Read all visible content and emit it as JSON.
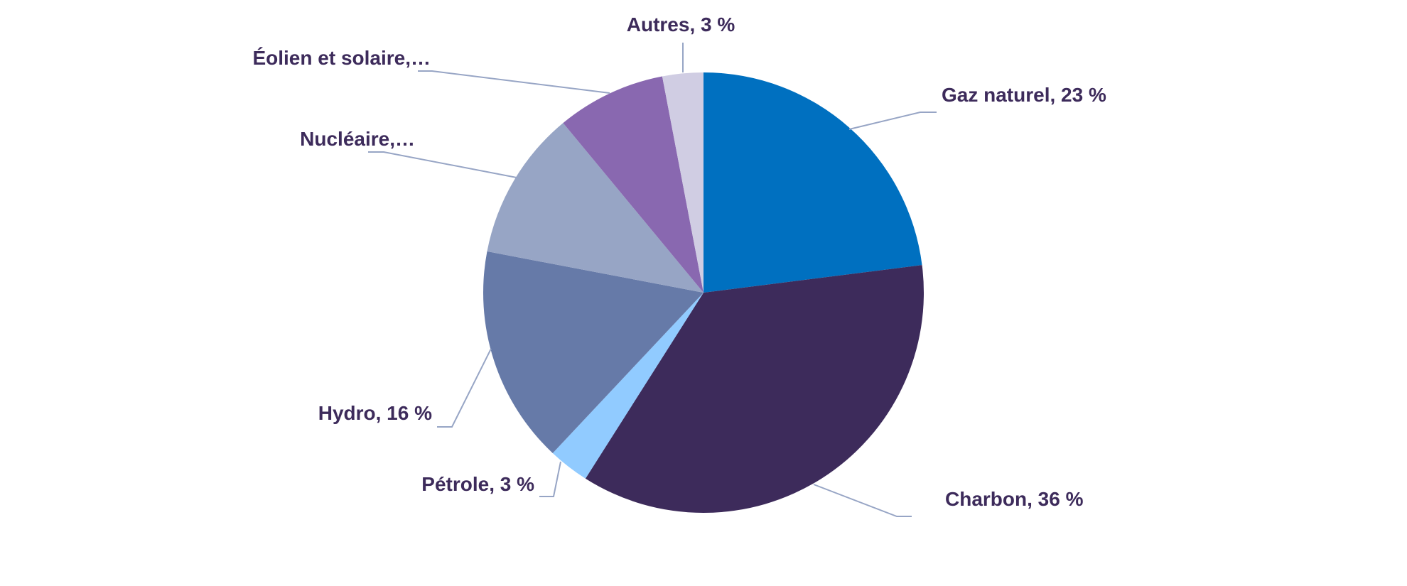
{
  "chart_data": {
    "type": "pie",
    "start_angle_deg": 0,
    "direction": "clockwise",
    "slices": [
      {
        "label": "Gaz naturel, 23 %",
        "value": 23,
        "color": "#0070c0",
        "label_side": "right"
      },
      {
        "label": "Charbon, 36 %",
        "value": 36,
        "color": "#3d2b5b",
        "label_side": "right"
      },
      {
        "label": "Pétrole, 3 %",
        "value": 3,
        "color": "#91cbff",
        "label_side": "left"
      },
      {
        "label": "Hydro, 16 %",
        "value": 16,
        "color": "#667aa8",
        "label_side": "left"
      },
      {
        "label": "Nucléaire,…",
        "value": 11,
        "color": "#97a5c5",
        "label_side": "left"
      },
      {
        "label": "Éolien et solaire,…",
        "value": 8,
        "color": "#8968b0",
        "label_side": "left"
      },
      {
        "label": "Autres, 3 %",
        "value": 3,
        "color": "#d0cde3",
        "label_side": "top"
      }
    ],
    "label_color": "#3d2b5b",
    "leader_color": "#97a5c5",
    "legend": "none"
  }
}
